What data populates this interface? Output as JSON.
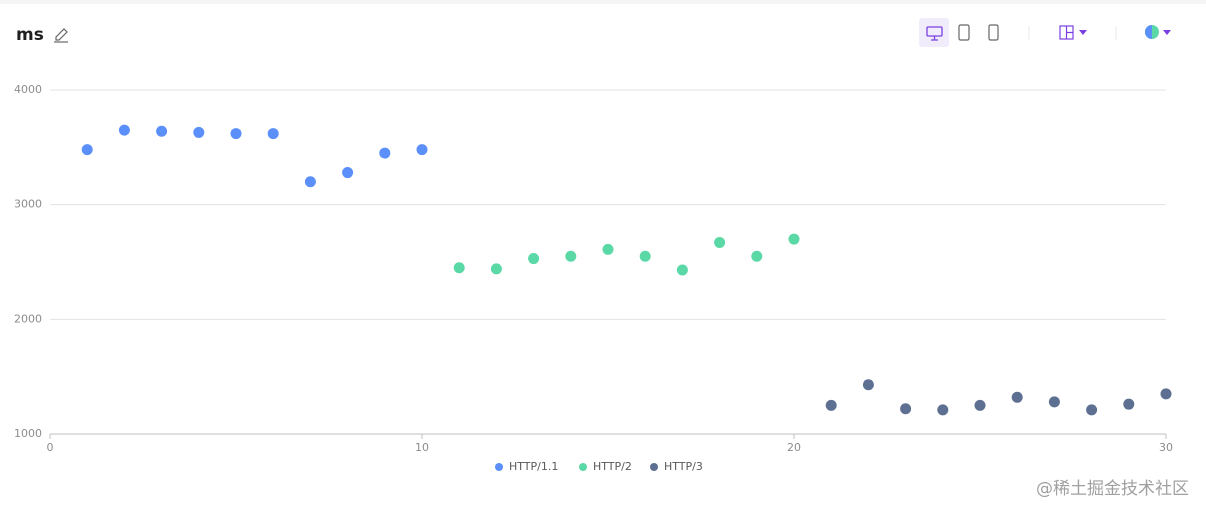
{
  "chart_data": {
    "type": "scatter",
    "title": "ms",
    "series": [
      {
        "name": "HTTP/1.1",
        "color": "#5b8ff9",
        "x": [
          1,
          2,
          3,
          4,
          5,
          6,
          7,
          8,
          9,
          10
        ],
        "values": [
          3480,
          3650,
          3640,
          3630,
          3620,
          3620,
          3200,
          3280,
          3450,
          3480
        ]
      },
      {
        "name": "HTTP/2",
        "color": "#5ad8a6",
        "x": [
          11,
          12,
          13,
          14,
          15,
          16,
          17,
          18,
          19,
          20
        ],
        "values": [
          2450,
          2440,
          2530,
          2550,
          2610,
          2550,
          2430,
          2670,
          2550,
          2700
        ]
      },
      {
        "name": "HTTP/3",
        "color": "#5d7092",
        "x": [
          21,
          22,
          23,
          24,
          25,
          26,
          27,
          28,
          29,
          30
        ],
        "values": [
          1250,
          1430,
          1220,
          1210,
          1250,
          1320,
          1280,
          1210,
          1260,
          1350
        ]
      }
    ],
    "xlim": [
      0,
      30
    ],
    "xticks": [
      0,
      10,
      20,
      30
    ],
    "ylim": [
      1000,
      4000
    ],
    "yticks": [
      1000,
      2000,
      3000,
      4000
    ],
    "grid": true,
    "legend": "bottom"
  },
  "watermark": "@稀土掘金技术社区"
}
